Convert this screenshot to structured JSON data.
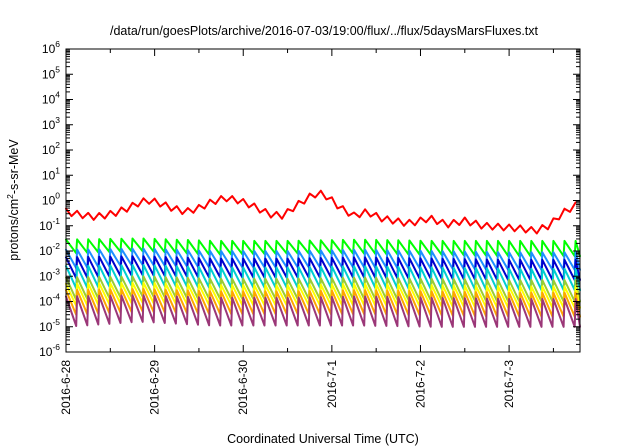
{
  "chart_data": {
    "type": "line",
    "title": "/data/run/goesPlots/archive/2016-07-03/19:00/flux/../flux/5daysMarsFluxes.txt",
    "xlabel": "Coordinated Universal Time (UTC)",
    "ylabel_base": "protons/cm",
    "ylabel_sup": "2",
    "ylabel_rest": "-s-sr-MeV",
    "yscale": "log",
    "ylim_exp": [
      -6,
      6
    ],
    "y_ticks": [
      {
        "base": "10",
        "exp": "6"
      },
      {
        "base": "10",
        "exp": "5"
      },
      {
        "base": "10",
        "exp": "4"
      },
      {
        "base": "10",
        "exp": "3"
      },
      {
        "base": "10",
        "exp": "2"
      },
      {
        "base": "10",
        "exp": "1"
      },
      {
        "base": "10",
        "exp": "0"
      },
      {
        "base": "10",
        "exp": "-1"
      },
      {
        "base": "10",
        "exp": "-2"
      },
      {
        "base": "10",
        "exp": "-3"
      },
      {
        "base": "10",
        "exp": "-4"
      },
      {
        "base": "10",
        "exp": "-5"
      },
      {
        "base": "10",
        "exp": "-6"
      }
    ],
    "x_ticks": [
      "2016-6-28",
      "2016-6-29",
      "2016-6-30",
      "2016-7-1",
      "2016-7-2",
      "2016-7-3"
    ],
    "xlim_days": [
      0,
      5.8
    ],
    "grid": false,
    "sawtooth_period_days": 0.125,
    "series": [
      {
        "color": "#ff0000",
        "kind": "smooth",
        "points": [
          [
            0.0,
            -0.45
          ],
          [
            0.15,
            -0.55
          ],
          [
            0.3,
            -0.65
          ],
          [
            0.42,
            -0.6
          ],
          [
            0.55,
            -0.5
          ],
          [
            0.7,
            -0.3
          ],
          [
            0.85,
            -0.05
          ],
          [
            0.95,
            0.0
          ],
          [
            1.05,
            -0.1
          ],
          [
            1.2,
            -0.3
          ],
          [
            1.35,
            -0.45
          ],
          [
            1.5,
            -0.3
          ],
          [
            1.65,
            -0.05
          ],
          [
            1.8,
            0.1
          ],
          [
            1.95,
            0.0
          ],
          [
            2.1,
            -0.2
          ],
          [
            2.3,
            -0.55
          ],
          [
            2.45,
            -0.6
          ],
          [
            2.6,
            -0.2
          ],
          [
            2.75,
            0.15
          ],
          [
            2.85,
            0.3
          ],
          [
            2.95,
            0.15
          ],
          [
            3.1,
            -0.3
          ],
          [
            3.25,
            -0.6
          ],
          [
            3.4,
            -0.45
          ],
          [
            3.55,
            -0.7
          ],
          [
            3.7,
            -0.8
          ],
          [
            3.85,
            -0.9
          ],
          [
            3.95,
            -0.85
          ],
          [
            4.1,
            -0.7
          ],
          [
            4.3,
            -0.95
          ],
          [
            4.5,
            -0.8
          ],
          [
            4.7,
            -1.0
          ],
          [
            4.9,
            -1.05
          ],
          [
            5.1,
            -1.1
          ],
          [
            5.3,
            -1.2
          ],
          [
            5.45,
            -1.0
          ],
          [
            5.6,
            -0.5
          ],
          [
            5.7,
            -0.3
          ],
          [
            5.8,
            -0.1
          ]
        ],
        "tooth_amp": 0.25
      },
      {
        "color": "#00ff00",
        "kind": "sawtooth",
        "peak": [
          -1.55,
          -1.5,
          -1.6,
          -1.6,
          -1.55,
          -1.6,
          -1.6,
          -1.6
        ],
        "trough": [
          -2.1,
          -2.0,
          -2.15,
          -2.1,
          -2.1,
          -2.15,
          -2.2,
          -2.2
        ]
      },
      {
        "color": "#1e90ff",
        "kind": "sawtooth",
        "peak": [
          -1.95,
          -1.9,
          -2.0,
          -2.0,
          -1.95,
          -2.0,
          -2.05,
          -2.05
        ],
        "trough": [
          -2.7,
          -2.55,
          -2.65,
          -2.65,
          -2.65,
          -2.7,
          -2.75,
          -2.75
        ]
      },
      {
        "color": "#0000cd",
        "kind": "sawtooth",
        "peak": [
          -2.25,
          -2.2,
          -2.3,
          -2.3,
          -2.25,
          -2.3,
          -2.35,
          -2.35
        ],
        "trough": [
          -3.1,
          -2.95,
          -3.05,
          -3.05,
          -3.05,
          -3.1,
          -3.15,
          -3.15
        ]
      },
      {
        "color": "#00ced1",
        "kind": "sawtooth",
        "peak": [
          -2.6,
          -2.55,
          -2.65,
          -2.65,
          -2.6,
          -2.65,
          -2.7,
          -2.7
        ],
        "trough": [
          -3.5,
          -3.35,
          -3.45,
          -3.45,
          -3.45,
          -3.5,
          -3.55,
          -3.55
        ]
      },
      {
        "color": "#9acd32",
        "kind": "sawtooth",
        "peak": [
          -3.05,
          -3.0,
          -3.1,
          -3.1,
          -3.05,
          -3.1,
          -3.15,
          -3.15
        ],
        "trough": [
          -3.95,
          -3.8,
          -3.9,
          -3.9,
          -3.9,
          -3.95,
          -4.0,
          -4.0
        ]
      },
      {
        "color": "#ffff00",
        "kind": "sawtooth",
        "peak": [
          -3.3,
          -3.25,
          -3.35,
          -3.35,
          -3.3,
          -3.35,
          -3.4,
          -3.4
        ],
        "trough": [
          -4.2,
          -4.05,
          -4.15,
          -4.15,
          -4.15,
          -4.2,
          -4.25,
          -4.25
        ]
      },
      {
        "color": "#ffa500",
        "kind": "sawtooth",
        "peak": [
          -3.55,
          -3.5,
          -3.6,
          -3.6,
          -3.55,
          -3.6,
          -3.65,
          -3.65
        ],
        "trough": [
          -4.55,
          -4.4,
          -4.5,
          -4.5,
          -4.5,
          -4.55,
          -4.6,
          -4.6
        ]
      },
      {
        "color": "#9b3778",
        "kind": "sawtooth",
        "peak": [
          -3.8,
          -3.75,
          -3.85,
          -3.85,
          -3.8,
          -3.85,
          -3.9,
          -3.9
        ],
        "trough": [
          -5.0,
          -4.8,
          -4.95,
          -4.95,
          -4.95,
          -5.0,
          -5.0,
          -5.0
        ]
      }
    ]
  }
}
